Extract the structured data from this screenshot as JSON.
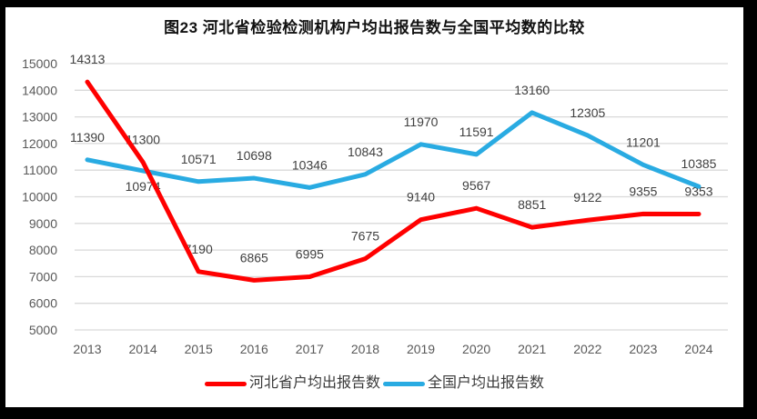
{
  "title": "图23  河北省检验检测机构户均出报告数与全国平均数的比较",
  "chart_data": {
    "type": "line",
    "title": "图23  河北省检验检测机构户均出报告数与全国平均数的比较",
    "categories": [
      "2013",
      "2014",
      "2015",
      "2016",
      "2017",
      "2018",
      "2019",
      "2020",
      "2021",
      "2022",
      "2023",
      "2024"
    ],
    "series": [
      {
        "id": "hebei",
        "name": "河北省户均出报告数",
        "color": "#FF0000",
        "values": [
          14313,
          11300,
          7190,
          6865,
          6995,
          7675,
          9140,
          9567,
          8851,
          9122,
          9355,
          9353
        ],
        "label_below_indices": []
      },
      {
        "id": "national",
        "name": "全国户均出报告数",
        "color": "#29ABE2",
        "values": [
          11390,
          10974,
          10571,
          10698,
          10346,
          10843,
          11970,
          11591,
          13160,
          12305,
          11201,
          10385
        ],
        "label_below_indices": [
          1
        ]
      }
    ],
    "ylim": [
      5000,
      15000
    ],
    "ytick_step": 1000,
    "xlabel": "",
    "ylabel": "",
    "grid": true,
    "data_labels": true,
    "legend_position": "bottom",
    "gridline_color": "#D9D9D9",
    "tick_label_color": "#595959",
    "data_label_color": "#404040"
  }
}
